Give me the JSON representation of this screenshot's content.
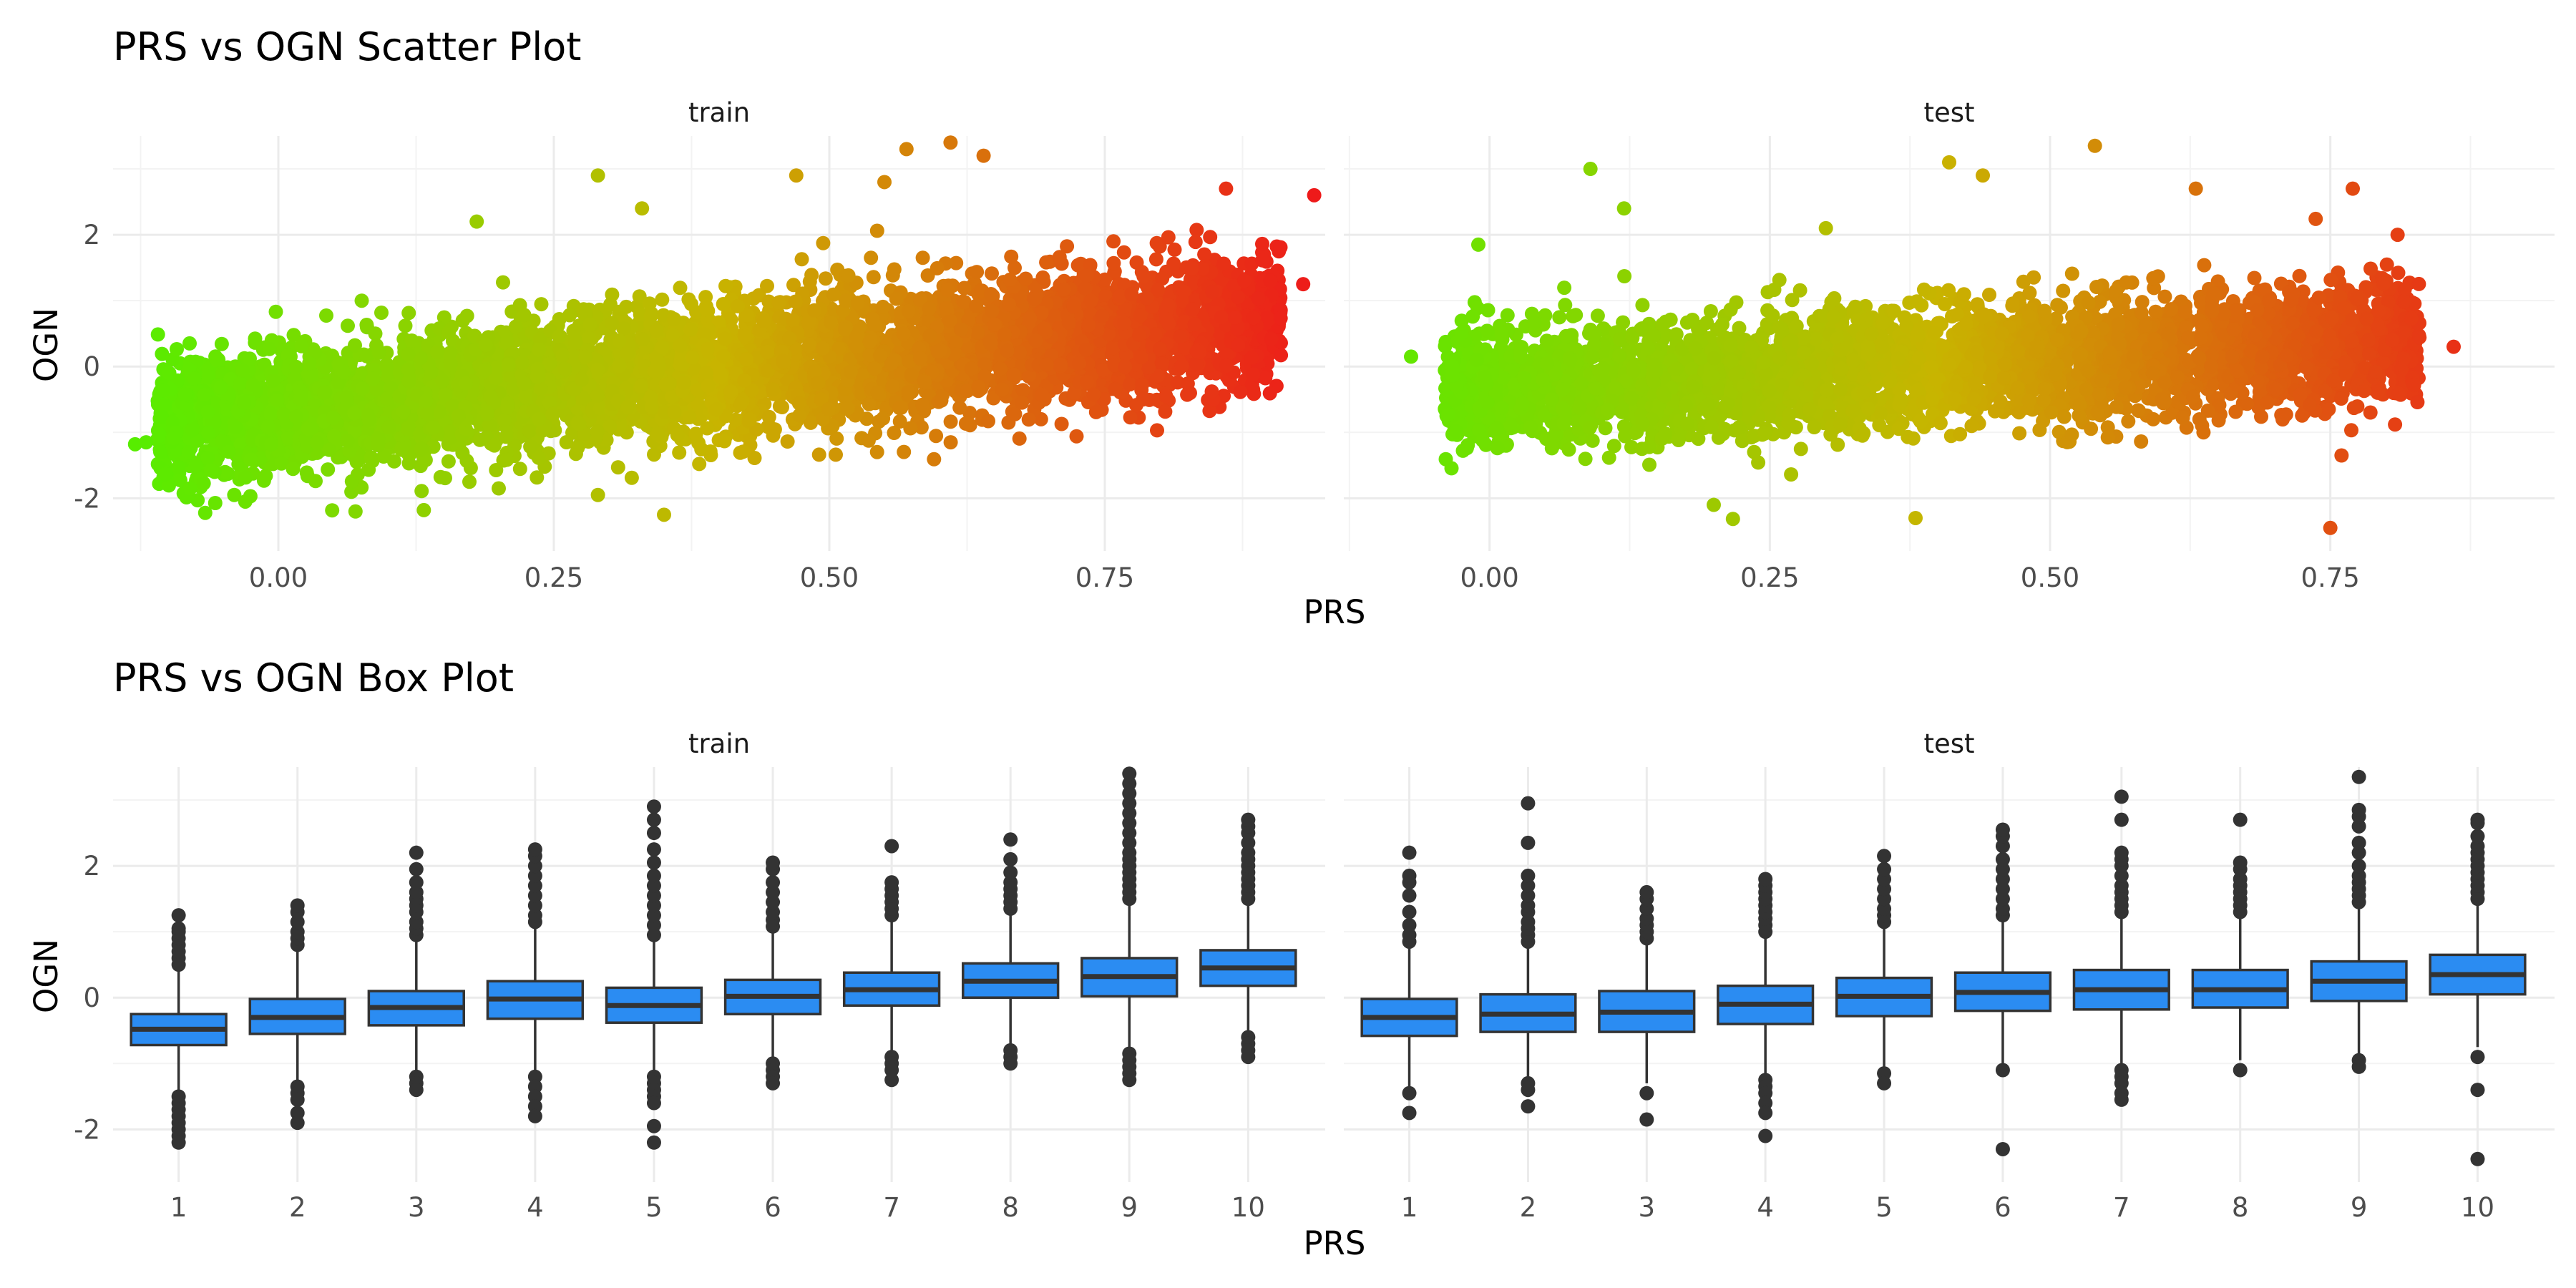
{
  "figure": {
    "colors": {
      "gradient_low": "#55ee00",
      "gradient_mid": "#c8b400",
      "gradient_high": "#ee1a1a",
      "box_fill": "#2b8cf2",
      "box_line": "#333333",
      "grid": "#ebebeb"
    }
  },
  "chart_data": [
    {
      "type": "scatter",
      "title": "PRS vs OGN Scatter Plot",
      "xlabel": "PRS",
      "ylabel": "OGN",
      "legend": "none",
      "grid": true,
      "facets": [
        {
          "label": "train",
          "xlim": [
            -0.15,
            0.95
          ],
          "ylim": [
            -2.8,
            3.5
          ],
          "x_ticks": [
            0.0,
            0.25,
            0.5,
            0.75
          ],
          "x_tick_labels": [
            "0.00",
            "0.25",
            "0.50",
            "0.75"
          ],
          "y_ticks": [
            -2,
            0,
            2
          ],
          "y_tick_labels": [
            "-2",
            "0",
            "2"
          ],
          "x_range": [
            -0.14,
            0.94
          ],
          "trend": {
            "intercept": -0.7,
            "slope": 1.6,
            "spread": 0.5
          },
          "outliers": [
            {
              "x": -0.13,
              "y": -1.18
            },
            {
              "x": -0.12,
              "y": -1.15
            },
            {
              "x": -0.08,
              "y": -1.85
            },
            {
              "x": -0.04,
              "y": -1.95
            },
            {
              "x": -0.03,
              "y": -2.05
            },
            {
              "x": 0.07,
              "y": -2.2
            },
            {
              "x": 0.2,
              "y": -1.85
            },
            {
              "x": 0.29,
              "y": -1.95
            },
            {
              "x": 0.35,
              "y": -2.25
            },
            {
              "x": 0.29,
              "y": 2.9
            },
            {
              "x": 0.33,
              "y": 2.4
            },
            {
              "x": 0.57,
              "y": 3.3
            },
            {
              "x": 0.61,
              "y": 3.4
            },
            {
              "x": 0.55,
              "y": 2.8
            },
            {
              "x": 0.64,
              "y": 3.2
            },
            {
              "x": 0.86,
              "y": 2.7
            },
            {
              "x": 0.94,
              "y": 2.6
            },
            {
              "x": 0.93,
              "y": 1.25
            },
            {
              "x": 0.18,
              "y": 2.2
            },
            {
              "x": 0.47,
              "y": 2.9
            }
          ]
        },
        {
          "label": "test",
          "xlim": [
            -0.13,
            0.95
          ],
          "ylim": [
            -2.8,
            3.5
          ],
          "x_ticks": [
            0.0,
            0.25,
            0.5,
            0.75
          ],
          "x_tick_labels": [
            "0.00",
            "0.25",
            "0.50",
            "0.75"
          ],
          "y_ticks": [
            -2,
            0,
            2
          ],
          "y_tick_labels": [
            "-2",
            "0",
            "2"
          ],
          "x_range": [
            -0.07,
            0.86
          ],
          "trend": {
            "intercept": -0.35,
            "slope": 0.9,
            "spread": 0.45
          },
          "outliers": [
            {
              "x": 0.09,
              "y": 3.0
            },
            {
              "x": 0.12,
              "y": 2.4
            },
            {
              "x": -0.01,
              "y": 1.85
            },
            {
              "x": 0.2,
              "y": -2.1
            },
            {
              "x": 0.38,
              "y": -2.3
            },
            {
              "x": 0.41,
              "y": 3.1
            },
            {
              "x": 0.54,
              "y": 3.35
            },
            {
              "x": 0.44,
              "y": 2.9
            },
            {
              "x": 0.75,
              "y": -2.45
            },
            {
              "x": 0.76,
              "y": -1.35
            },
            {
              "x": 0.77,
              "y": 2.7
            },
            {
              "x": 0.81,
              "y": 2.0
            },
            {
              "x": -0.07,
              "y": 0.15
            },
            {
              "x": 0.86,
              "y": 0.3
            },
            {
              "x": 0.3,
              "y": 2.1
            },
            {
              "x": 0.63,
              "y": 2.7
            }
          ]
        }
      ]
    },
    {
      "type": "box",
      "title": "PRS vs OGN Box Plot",
      "xlabel": "PRS",
      "ylabel": "OGN",
      "legend": "none",
      "grid": true,
      "categories": [
        "1",
        "2",
        "3",
        "4",
        "5",
        "6",
        "7",
        "8",
        "9",
        "10"
      ],
      "facets": [
        {
          "label": "train",
          "ylim": [
            -2.8,
            3.5
          ],
          "y_ticks": [
            -2,
            0,
            2
          ],
          "y_tick_labels": [
            "-2",
            "0",
            "2"
          ],
          "boxes": [
            {
              "q1": -0.72,
              "median": -0.48,
              "q3": -0.25,
              "whisker_low": -1.45,
              "whisker_high": 0.45,
              "outliers": [
                -1.5,
                -1.6,
                -1.7,
                -1.8,
                -1.9,
                -2.0,
                -2.1,
                -2.2,
                0.5,
                0.6,
                0.7,
                0.8,
                0.9,
                1.0,
                1.05,
                1.25
              ]
            },
            {
              "q1": -0.55,
              "median": -0.3,
              "q3": -0.02,
              "whisker_low": -1.3,
              "whisker_high": 0.75,
              "outliers": [
                -1.35,
                -1.45,
                -1.55,
                -1.75,
                -1.9,
                0.8,
                0.9,
                1.0,
                1.15,
                1.3,
                1.4
              ]
            },
            {
              "q1": -0.42,
              "median": -0.15,
              "q3": 0.1,
              "whisker_low": -1.15,
              "whisker_high": 0.88,
              "outliers": [
                -1.2,
                -1.3,
                -1.4,
                0.95,
                1.05,
                1.15,
                1.3,
                1.4,
                1.5,
                1.6,
                1.75,
                1.95,
                2.2
              ]
            },
            {
              "q1": -0.32,
              "median": -0.02,
              "q3": 0.25,
              "whisker_low": -1.15,
              "whisker_high": 1.1,
              "outliers": [
                -1.2,
                -1.35,
                -1.5,
                -1.65,
                -1.8,
                1.15,
                1.25,
                1.4,
                1.55,
                1.7,
                1.85,
                2.0,
                2.15,
                2.25
              ]
            },
            {
              "q1": -0.38,
              "median": -0.12,
              "q3": 0.15,
              "whisker_low": -1.15,
              "whisker_high": 0.9,
              "outliers": [
                -1.2,
                -1.3,
                -1.4,
                -1.5,
                -1.6,
                -1.95,
                -2.2,
                0.95,
                1.1,
                1.25,
                1.4,
                1.55,
                1.7,
                1.85,
                2.05,
                2.25,
                2.5,
                2.7,
                2.9
              ]
            },
            {
              "q1": -0.25,
              "median": 0.02,
              "q3": 0.27,
              "whisker_low": -0.95,
              "whisker_high": 1.02,
              "outliers": [
                -1.0,
                -1.1,
                -1.2,
                -1.3,
                1.08,
                1.18,
                1.3,
                1.45,
                1.6,
                1.75,
                1.95,
                2.05
              ]
            },
            {
              "q1": -0.12,
              "median": 0.12,
              "q3": 0.38,
              "whisker_low": -0.85,
              "whisker_high": 1.2,
              "outliers": [
                -0.9,
                -1.0,
                -1.1,
                -1.25,
                1.25,
                1.35,
                1.45,
                1.55,
                1.65,
                1.75,
                2.3
              ]
            },
            {
              "q1": 0.0,
              "median": 0.25,
              "q3": 0.52,
              "whisker_low": -0.75,
              "whisker_high": 1.3,
              "outliers": [
                -0.8,
                -0.9,
                -1.0,
                1.35,
                1.45,
                1.55,
                1.65,
                1.75,
                1.9,
                2.1,
                2.4
              ]
            },
            {
              "q1": 0.02,
              "median": 0.32,
              "q3": 0.6,
              "whisker_low": -0.8,
              "whisker_high": 1.45,
              "outliers": [
                -0.85,
                -0.95,
                -1.05,
                -1.15,
                -1.25,
                1.5,
                1.6,
                1.7,
                1.8,
                1.9,
                2.0,
                2.1,
                2.2,
                2.35,
                2.5,
                2.65,
                2.8,
                2.95,
                3.1,
                3.25,
                3.4
              ]
            },
            {
              "q1": 0.18,
              "median": 0.45,
              "q3": 0.72,
              "whisker_low": -0.55,
              "whisker_high": 1.45,
              "outliers": [
                -0.6,
                -0.7,
                -0.8,
                -0.9,
                1.5,
                1.6,
                1.7,
                1.8,
                1.9,
                2.0,
                2.1,
                2.2,
                2.35,
                2.5,
                2.6,
                2.7
              ]
            }
          ]
        },
        {
          "label": "test",
          "ylim": [
            -2.8,
            3.5
          ],
          "y_ticks": [
            -2,
            0,
            2
          ],
          "y_tick_labels": [
            "-2",
            "0",
            "2"
          ],
          "boxes": [
            {
              "q1": -0.58,
              "median": -0.3,
              "q3": -0.02,
              "whisker_low": -1.4,
              "whisker_high": 0.78,
              "outliers": [
                -1.45,
                -1.75,
                0.85,
                0.95,
                1.1,
                1.3,
                1.55,
                1.75,
                1.85,
                2.2
              ]
            },
            {
              "q1": -0.52,
              "median": -0.25,
              "q3": 0.05,
              "whisker_low": -1.25,
              "whisker_high": 0.8,
              "outliers": [
                -1.3,
                -1.4,
                -1.65,
                0.85,
                0.95,
                1.05,
                1.15,
                1.3,
                1.4,
                1.55,
                1.7,
                1.85,
                2.35,
                2.95
              ]
            },
            {
              "q1": -0.52,
              "median": -0.22,
              "q3": 0.1,
              "whisker_low": -1.3,
              "whisker_high": 0.85,
              "outliers": [
                -1.45,
                -1.85,
                0.9,
                1.0,
                1.1,
                1.2,
                1.35,
                1.5,
                1.6
              ]
            },
            {
              "q1": -0.4,
              "median": -0.1,
              "q3": 0.18,
              "whisker_low": -1.2,
              "whisker_high": 0.95,
              "outliers": [
                -1.25,
                -1.35,
                -1.45,
                -1.6,
                -1.75,
                -2.1,
                1.0,
                1.1,
                1.2,
                1.3,
                1.4,
                1.5,
                1.6,
                1.7,
                1.8
              ]
            },
            {
              "q1": -0.28,
              "median": 0.02,
              "q3": 0.3,
              "whisker_low": -1.1,
              "whisker_high": 1.1,
              "outliers": [
                -1.15,
                -1.3,
                1.15,
                1.25,
                1.35,
                1.5,
                1.65,
                1.8,
                1.95,
                2.15
              ]
            },
            {
              "q1": -0.2,
              "median": 0.08,
              "q3": 0.38,
              "whisker_low": -1.05,
              "whisker_high": 1.2,
              "outliers": [
                -1.1,
                -2.3,
                1.25,
                1.35,
                1.5,
                1.65,
                1.8,
                1.95,
                2.1,
                2.3,
                2.45,
                2.55
              ]
            },
            {
              "q1": -0.18,
              "median": 0.12,
              "q3": 0.42,
              "whisker_low": -1.05,
              "whisker_high": 1.25,
              "outliers": [
                -1.1,
                -1.2,
                -1.3,
                -1.45,
                -1.55,
                1.3,
                1.4,
                1.5,
                1.6,
                1.7,
                1.85,
                2.0,
                2.1,
                2.2,
                2.7,
                3.05
              ]
            },
            {
              "q1": -0.15,
              "median": 0.12,
              "q3": 0.42,
              "whisker_low": -0.95,
              "whisker_high": 1.25,
              "outliers": [
                -1.1,
                1.3,
                1.4,
                1.5,
                1.6,
                1.7,
                1.8,
                1.95,
                2.05,
                2.7
              ]
            },
            {
              "q1": -0.05,
              "median": 0.25,
              "q3": 0.55,
              "whisker_low": -0.85,
              "whisker_high": 1.4,
              "outliers": [
                -0.95,
                -1.05,
                1.45,
                1.55,
                1.65,
                1.75,
                1.85,
                2.0,
                2.2,
                2.35,
                2.6,
                2.75,
                2.85,
                3.35
              ]
            },
            {
              "q1": 0.05,
              "median": 0.35,
              "q3": 0.65,
              "whisker_low": -0.75,
              "whisker_high": 1.45,
              "outliers": [
                -0.9,
                -1.4,
                -2.45,
                1.5,
                1.6,
                1.7,
                1.8,
                1.9,
                2.0,
                2.1,
                2.2,
                2.3,
                2.45,
                2.65,
                2.7
              ]
            }
          ]
        }
      ]
    }
  ]
}
